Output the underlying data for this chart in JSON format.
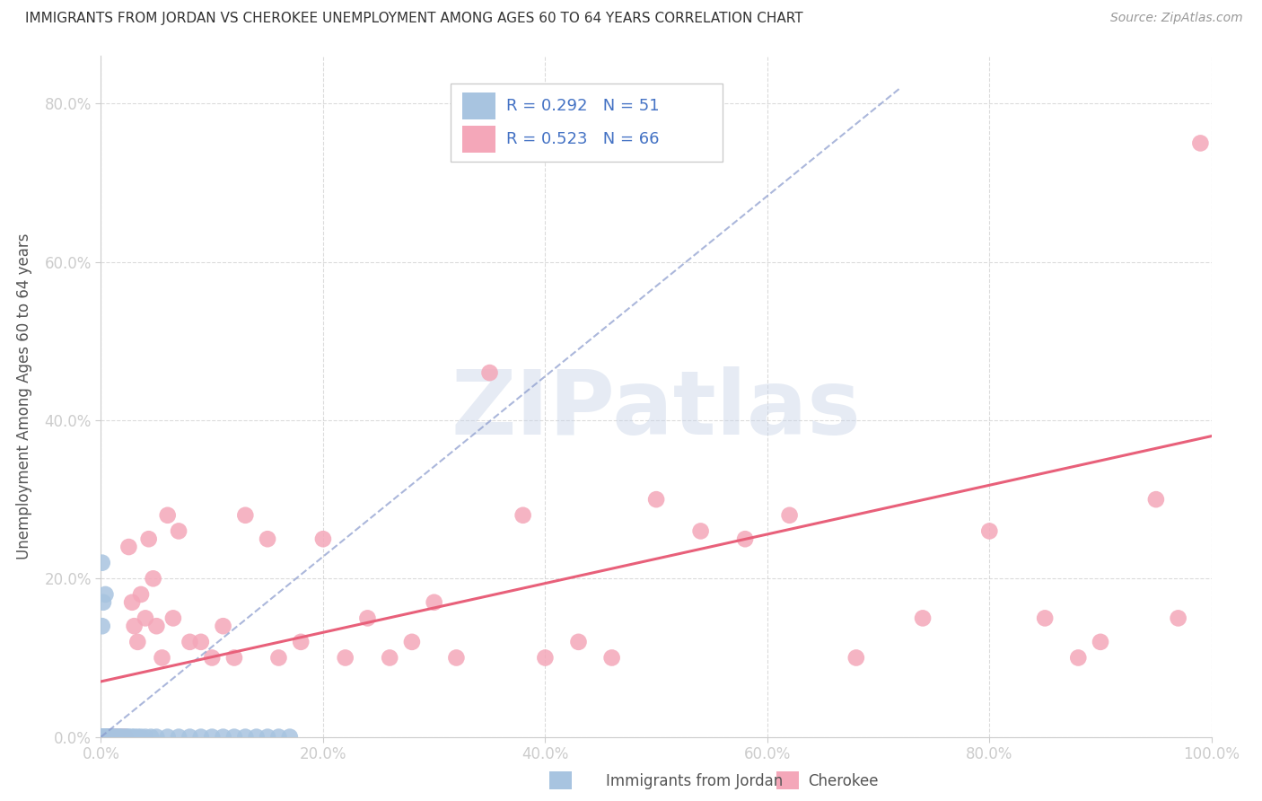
{
  "title": "IMMIGRANTS FROM JORDAN VS CHEROKEE UNEMPLOYMENT AMONG AGES 60 TO 64 YEARS CORRELATION CHART",
  "source": "Source: ZipAtlas.com",
  "ylabel": "Unemployment Among Ages 60 to 64 years",
  "r1": 0.292,
  "n1": 51,
  "r2": 0.523,
  "n2": 66,
  "color_jordan": "#a8c4e0",
  "color_cherokee": "#f4a7b9",
  "trendline_jordan_color": "#8899cc",
  "trendline_cherokee_color": "#e8607a",
  "legend_label_1": "Immigrants from Jordan",
  "legend_label_2": "Cherokee",
  "xlim": [
    0.0,
    1.0
  ],
  "ylim": [
    0.0,
    0.86
  ],
  "xtick_vals": [
    0.0,
    0.2,
    0.4,
    0.6,
    0.8,
    1.0
  ],
  "ytick_vals": [
    0.0,
    0.2,
    0.4,
    0.6,
    0.8
  ],
  "xticklabels": [
    "0.0%",
    "20.0%",
    "40.0%",
    "60.0%",
    "80.0%",
    "100.0%"
  ],
  "yticklabels": [
    "0.0%",
    "20.0%",
    "40.0%",
    "60.0%",
    "80.0%"
  ],
  "jordan_x": [
    0.001,
    0.001,
    0.001,
    0.001,
    0.001,
    0.002,
    0.002,
    0.002,
    0.002,
    0.003,
    0.003,
    0.003,
    0.004,
    0.004,
    0.005,
    0.005,
    0.006,
    0.007,
    0.008,
    0.009,
    0.01,
    0.011,
    0.012,
    0.013,
    0.015,
    0.016,
    0.017,
    0.018,
    0.02,
    0.022,
    0.024,
    0.025,
    0.028,
    0.03,
    0.033,
    0.036,
    0.04,
    0.045,
    0.05,
    0.06,
    0.07,
    0.08,
    0.09,
    0.1,
    0.11,
    0.12,
    0.13,
    0.14,
    0.15,
    0.16,
    0.17
  ],
  "jordan_y": [
    0.0,
    0.0,
    0.0,
    0.22,
    0.14,
    0.0,
    0.0,
    0.17,
    0.0,
    0.0,
    0.0,
    0.0,
    0.18,
    0.0,
    0.0,
    0.0,
    0.0,
    0.0,
    0.0,
    0.0,
    0.0,
    0.0,
    0.0,
    0.0,
    0.0,
    0.0,
    0.0,
    0.0,
    0.0,
    0.0,
    0.0,
    0.0,
    0.0,
    0.0,
    0.0,
    0.0,
    0.0,
    0.0,
    0.0,
    0.0,
    0.0,
    0.0,
    0.0,
    0.0,
    0.0,
    0.0,
    0.0,
    0.0,
    0.0,
    0.0,
    0.0
  ],
  "cherokee_x": [
    0.001,
    0.002,
    0.003,
    0.004,
    0.005,
    0.006,
    0.007,
    0.008,
    0.009,
    0.01,
    0.011,
    0.012,
    0.013,
    0.014,
    0.015,
    0.016,
    0.018,
    0.02,
    0.022,
    0.025,
    0.028,
    0.03,
    0.033,
    0.036,
    0.04,
    0.043,
    0.047,
    0.05,
    0.055,
    0.06,
    0.065,
    0.07,
    0.08,
    0.09,
    0.1,
    0.11,
    0.12,
    0.13,
    0.15,
    0.16,
    0.18,
    0.2,
    0.22,
    0.24,
    0.26,
    0.28,
    0.3,
    0.32,
    0.35,
    0.38,
    0.4,
    0.43,
    0.46,
    0.5,
    0.54,
    0.58,
    0.62,
    0.68,
    0.74,
    0.8,
    0.85,
    0.88,
    0.9,
    0.95,
    0.97,
    0.99
  ],
  "cherokee_y": [
    0.0,
    0.0,
    0.0,
    0.0,
    0.0,
    0.0,
    0.0,
    0.0,
    0.0,
    0.0,
    0.0,
    0.0,
    0.0,
    0.0,
    0.0,
    0.0,
    0.0,
    0.0,
    0.0,
    0.24,
    0.17,
    0.14,
    0.12,
    0.18,
    0.15,
    0.25,
    0.2,
    0.14,
    0.1,
    0.28,
    0.15,
    0.26,
    0.12,
    0.12,
    0.1,
    0.14,
    0.1,
    0.28,
    0.25,
    0.1,
    0.12,
    0.25,
    0.1,
    0.15,
    0.1,
    0.12,
    0.17,
    0.1,
    0.46,
    0.28,
    0.1,
    0.12,
    0.1,
    0.3,
    0.26,
    0.25,
    0.28,
    0.1,
    0.15,
    0.26,
    0.15,
    0.1,
    0.12,
    0.3,
    0.15,
    0.75
  ],
  "background_color": "#ffffff",
  "grid_color": "#cccccc",
  "watermark_text": "ZIPatlas"
}
